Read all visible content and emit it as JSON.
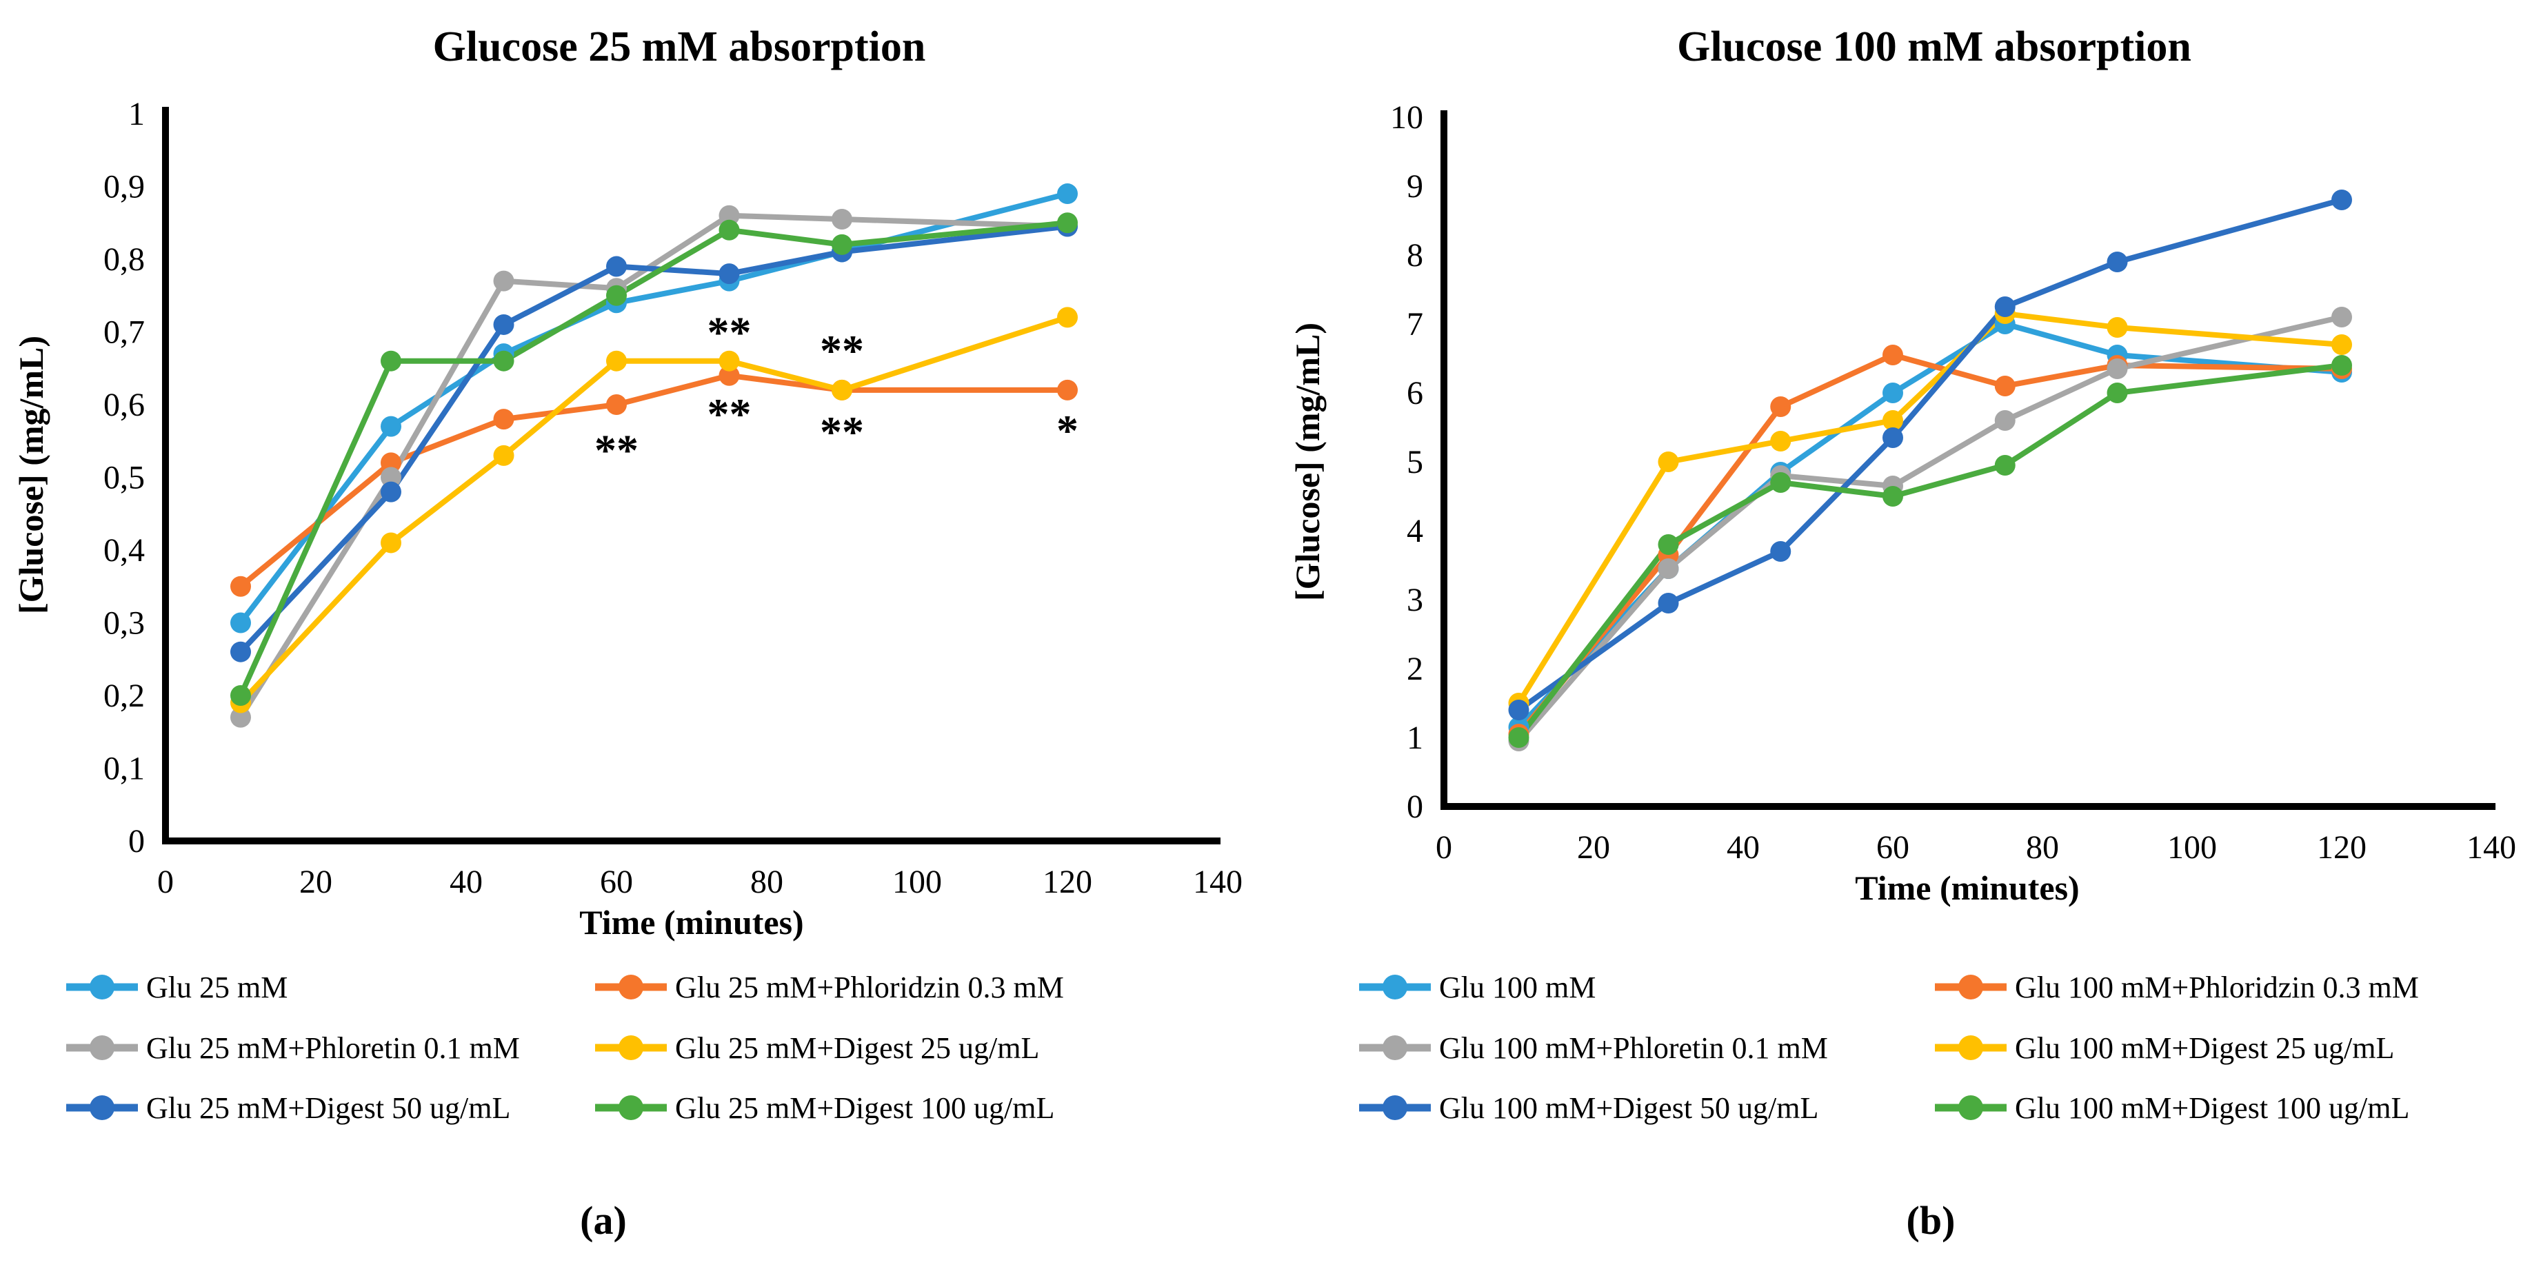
{
  "figure": {
    "caption_a": "(a)",
    "caption_b": "(b)"
  },
  "chart_data": [
    {
      "type": "line",
      "title": "Glucose 25 mM absorption",
      "xlabel": "Time (minutes)",
      "ylabel": "[Glucose] (mg/mL)",
      "xlim": [
        0,
        140
      ],
      "ylim": [
        0,
        1
      ],
      "grid": "off",
      "legend_position": "bottom",
      "x_ticks": [
        {
          "v": 0,
          "label": "0"
        },
        {
          "v": 20,
          "label": "20"
        },
        {
          "v": 40,
          "label": "40"
        },
        {
          "v": 60,
          "label": "60"
        },
        {
          "v": 80,
          "label": "80"
        },
        {
          "v": 100,
          "label": "100"
        },
        {
          "v": 120,
          "label": "120"
        },
        {
          "v": 140,
          "label": "140"
        }
      ],
      "y_ticks": [
        {
          "v": 0,
          "label": "0"
        },
        {
          "v": 0.1,
          "label": "0,1"
        },
        {
          "v": 0.2,
          "label": "0,2"
        },
        {
          "v": 0.3,
          "label": "0,3"
        },
        {
          "v": 0.4,
          "label": "0,4"
        },
        {
          "v": 0.5,
          "label": "0,5"
        },
        {
          "v": 0.6,
          "label": "0,6"
        },
        {
          "v": 0.7,
          "label": "0,7"
        },
        {
          "v": 0.8,
          "label": "0,8"
        },
        {
          "v": 0.9,
          "label": "0,9"
        },
        {
          "v": 1,
          "label": "1"
        }
      ],
      "x": [
        10,
        30,
        45,
        60,
        75,
        90,
        120
      ],
      "series": [
        {
          "name": "Glu 25 mM",
          "color": "#2FA1DB",
          "values": [
            0.3,
            0.57,
            0.67,
            0.74,
            0.77,
            0.81,
            0.89
          ]
        },
        {
          "name": "Glu 25 mM+Phloridzin 0.3 mM",
          "color": "#F5762B",
          "values": [
            0.35,
            0.52,
            0.58,
            0.6,
            0.64,
            0.62,
            0.62
          ]
        },
        {
          "name": "Glu 25 mM+Phloretin 0.1 mM",
          "color": "#A6A6A6",
          "values": [
            0.17,
            0.5,
            0.77,
            0.76,
            0.86,
            0.855,
            0.845
          ]
        },
        {
          "name": "Glu 25 mM+Digest 25 ug/mL",
          "color": "#FFC000",
          "values": [
            0.19,
            0.41,
            0.53,
            0.66,
            0.66,
            0.62,
            0.72
          ]
        },
        {
          "name": "Glu 25 mM+Digest 50 ug/mL",
          "color": "#2D6FC1",
          "values": [
            0.26,
            0.48,
            0.71,
            0.79,
            0.78,
            0.81,
            0.845
          ]
        },
        {
          "name": "Glu 25 mM+Digest 100 ug/mL",
          "color": "#4AAB3F",
          "values": [
            0.2,
            0.66,
            0.66,
            0.75,
            0.84,
            0.82,
            0.85
          ]
        }
      ],
      "annotations": [
        {
          "text": "**",
          "t": 75,
          "v": 0.715,
          "color": "#FFC000"
        },
        {
          "text": "**",
          "t": 90,
          "v": 0.69,
          "color": "#FFC000"
        },
        {
          "text": "**",
          "t": 60,
          "v": 0.553,
          "color": "#F5762B"
        },
        {
          "text": "**",
          "t": 75,
          "v": 0.603,
          "color": "#F5762B"
        },
        {
          "text": "**",
          "t": 90,
          "v": 0.578,
          "color": "#F5762B"
        },
        {
          "text": "*",
          "t": 120,
          "v": 0.58,
          "color": "#F5762B"
        }
      ]
    },
    {
      "type": "line",
      "title": "Glucose 100 mM absorption",
      "xlabel": "Time (minutes)",
      "ylabel": "[Glucose] (mg/mL)",
      "xlim": [
        0,
        140
      ],
      "ylim": [
        0,
        10
      ],
      "grid": "off",
      "legend_position": "bottom",
      "x_ticks": [
        {
          "v": 0,
          "label": "0"
        },
        {
          "v": 20,
          "label": "20"
        },
        {
          "v": 40,
          "label": "40"
        },
        {
          "v": 60,
          "label": "60"
        },
        {
          "v": 80,
          "label": "80"
        },
        {
          "v": 100,
          "label": "100"
        },
        {
          "v": 120,
          "label": "120"
        },
        {
          "v": 140,
          "label": "140"
        }
      ],
      "y_ticks": [
        {
          "v": 0,
          "label": "0"
        },
        {
          "v": 1,
          "label": "1"
        },
        {
          "v": 2,
          "label": "2"
        },
        {
          "v": 3,
          "label": "3"
        },
        {
          "v": 4,
          "label": "4"
        },
        {
          "v": 5,
          "label": "5"
        },
        {
          "v": 6,
          "label": "6"
        },
        {
          "v": 7,
          "label": "7"
        },
        {
          "v": 8,
          "label": "8"
        },
        {
          "v": 9,
          "label": "9"
        },
        {
          "v": 10,
          "label": "10"
        }
      ],
      "x": [
        10,
        30,
        45,
        60,
        75,
        90,
        120
      ],
      "series": [
        {
          "name": "Glu 100 mM",
          "color": "#2FA1DB",
          "values": [
            1.15,
            3.45,
            4.85,
            6.0,
            7.0,
            6.55,
            6.3
          ]
        },
        {
          "name": "Glu 100 mM+Phloridzin 0.3 mM",
          "color": "#F5762B",
          "values": [
            1.05,
            3.65,
            5.8,
            6.55,
            6.1,
            6.4,
            6.35
          ]
        },
        {
          "name": "Glu 100 mM+Phloretin 0.1 mM",
          "color": "#A6A6A6",
          "values": [
            0.95,
            3.45,
            4.8,
            4.65,
            5.6,
            6.35,
            7.1
          ]
        },
        {
          "name": "Glu 100 mM+Digest 25 ug/mL",
          "color": "#FFC000",
          "values": [
            1.5,
            5.0,
            5.3,
            5.6,
            7.15,
            6.95,
            6.7
          ]
        },
        {
          "name": "Glu 100 mM+Digest 50 ug/mL",
          "color": "#2D6FC1",
          "values": [
            1.4,
            2.95,
            3.7,
            5.35,
            7.25,
            7.9,
            8.8
          ]
        },
        {
          "name": "Glu 100 mM+Digest 100 ug/mL",
          "color": "#4AAB3F",
          "values": [
            1.0,
            3.8,
            4.7,
            4.5,
            4.95,
            6.0,
            6.4
          ]
        }
      ],
      "annotations": []
    }
  ]
}
